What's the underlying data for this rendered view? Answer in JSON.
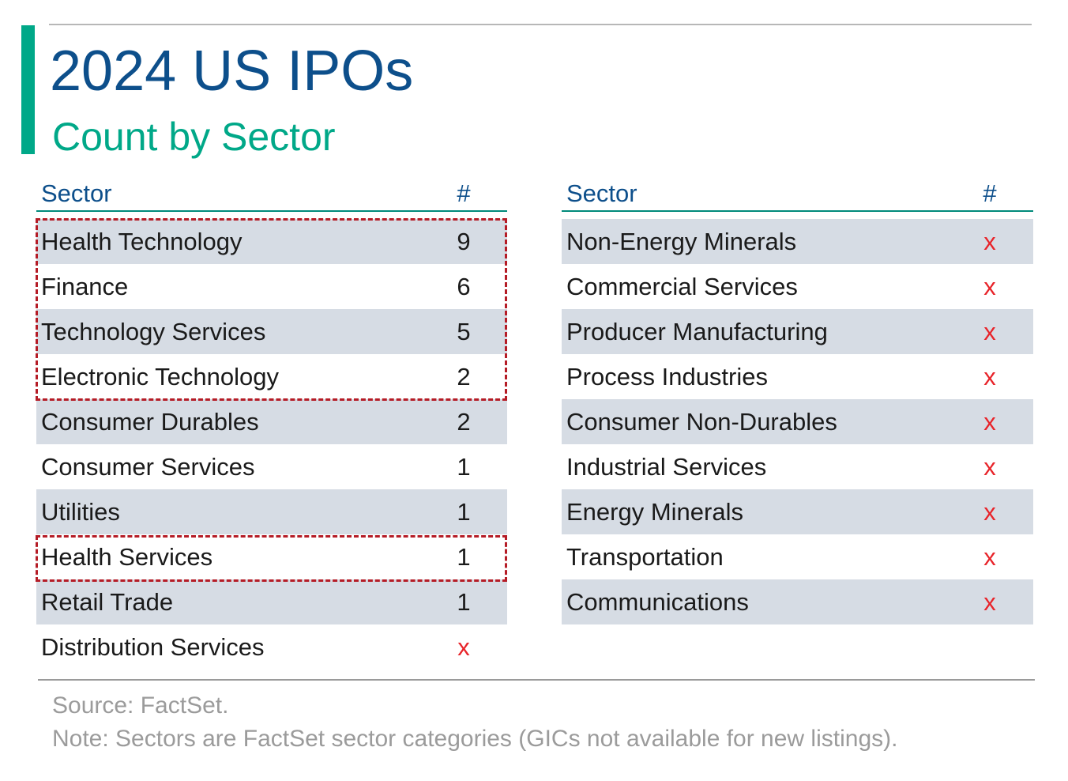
{
  "title": "2024 US IPOs",
  "subtitle": "Count by Sector",
  "colors": {
    "title": "#0d4f8b",
    "accent": "#00a888",
    "row_shade": "#d6dce4",
    "highlight": "#b51c26",
    "x_mark": "#e8242a"
  },
  "chart_data": {
    "type": "table",
    "title": "2024 US IPOs",
    "subtitle": "Count by Sector",
    "columns": [
      "Sector",
      "#"
    ],
    "left_rows": [
      {
        "sector": "Health Technology",
        "count": "9"
      },
      {
        "sector": "Finance",
        "count": "6"
      },
      {
        "sector": "Technology Services",
        "count": "5"
      },
      {
        "sector": "Electronic Technology",
        "count": "2"
      },
      {
        "sector": "Consumer Durables",
        "count": "2"
      },
      {
        "sector": "Consumer Services",
        "count": "1"
      },
      {
        "sector": "Utilities",
        "count": "1"
      },
      {
        "sector": "Health Services",
        "count": "1"
      },
      {
        "sector": "Retail Trade",
        "count": "1"
      },
      {
        "sector": "Distribution Services",
        "count": "x"
      }
    ],
    "right_rows": [
      {
        "sector": "Non-Energy Minerals",
        "count": "x"
      },
      {
        "sector": "Commercial Services",
        "count": "x"
      },
      {
        "sector": "Producer Manufacturing",
        "count": "x"
      },
      {
        "sector": "Process Industries",
        "count": "x"
      },
      {
        "sector": "Consumer Non-Durables",
        "count": "x"
      },
      {
        "sector": "Industrial Services",
        "count": "x"
      },
      {
        "sector": "Energy Minerals",
        "count": "x"
      },
      {
        "sector": "Transportation",
        "count": "x"
      },
      {
        "sector": "Communications",
        "count": "x"
      }
    ],
    "highlighted_sectors": [
      "Health Technology",
      "Finance",
      "Technology Services",
      "Electronic Technology",
      "Health Services"
    ]
  },
  "footer": {
    "source": "Source: FactSet.",
    "note": "Note: Sectors are FactSet sector categories (GICs not available for new listings)."
  }
}
